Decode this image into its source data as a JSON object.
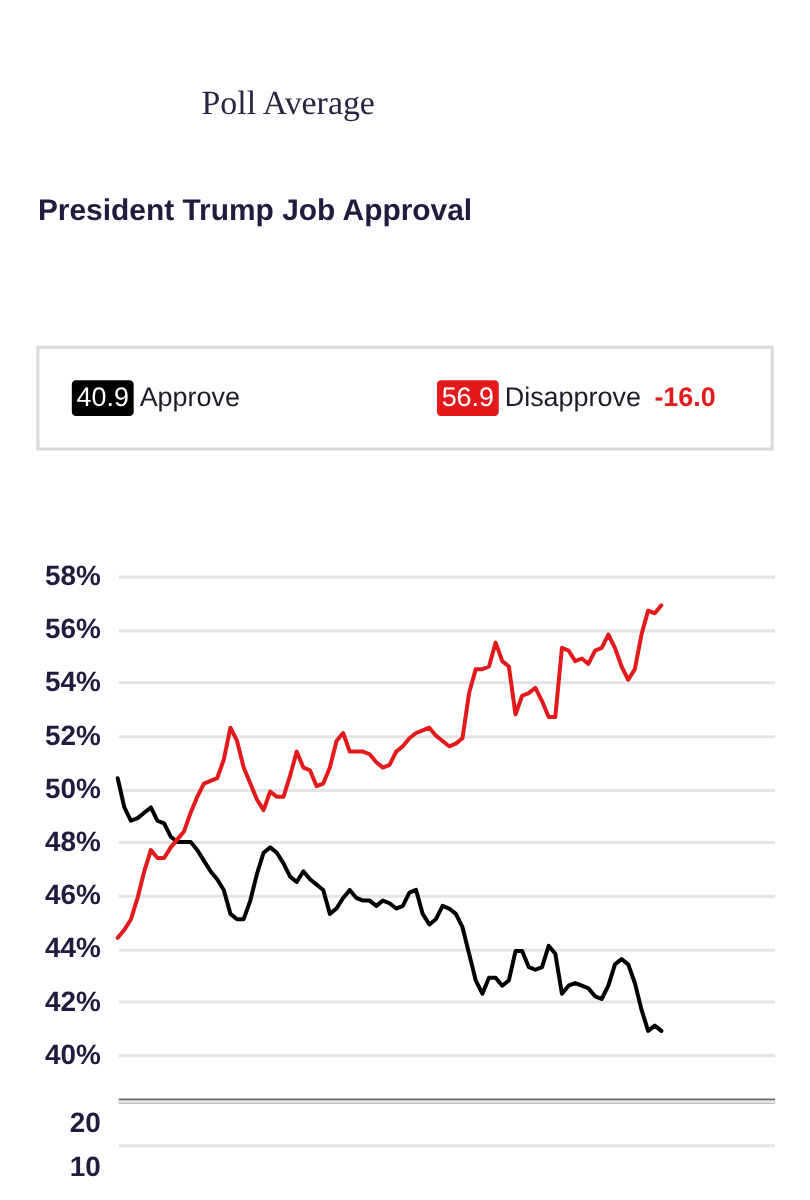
{
  "chart_data": [
    {
      "type": "line",
      "title": "President Trump Job Approval",
      "subtitle": "Poll Average",
      "annotations": [
        "40.9",
        "56.9",
        "-16.0"
      ],
      "categories": [
        null,
        null,
        null,
        null,
        null,
        null,
        null,
        null,
        null,
        null,
        null,
        null,
        null,
        null,
        null,
        null,
        null,
        null,
        null,
        null,
        null,
        null,
        null,
        null,
        null,
        null,
        null,
        null,
        null,
        null,
        null,
        null,
        null,
        null,
        null,
        null,
        null,
        null,
        null,
        null,
        null,
        null,
        null,
        null,
        null,
        null,
        null,
        null,
        null,
        null,
        null,
        null,
        null,
        null,
        null,
        null,
        null,
        null,
        null,
        null,
        null,
        null,
        null,
        null,
        null,
        null,
        null,
        null,
        null,
        null,
        null,
        null,
        null,
        null,
        null,
        null,
        null,
        null,
        null,
        null,
        null,
        null,
        null,
        null,
        null,
        null,
        null,
        null,
        null,
        null,
        null,
        null,
        null,
        null,
        null,
        null,
        null,
        null,
        null,
        null
      ],
      "series": [
        {
          "name": "Approve",
          "color": "#000000",
          "values": [
            50.4,
            49.3,
            48.8,
            48.9,
            49.1,
            49.3,
            48.8,
            48.7,
            48.2,
            48.0,
            48.0,
            48.0,
            47.7,
            47.3,
            46.9,
            46.6,
            46.2,
            45.3,
            45.1,
            45.1,
            45.8,
            46.8,
            47.6,
            47.8,
            47.6,
            47.2,
            46.7,
            46.5,
            46.9,
            46.6,
            46.4,
            46.2,
            45.3,
            45.5,
            45.9,
            46.2,
            45.9,
            45.8,
            45.8,
            45.6,
            45.8,
            45.7,
            45.5,
            45.6,
            46.1,
            46.2,
            45.3,
            44.9,
            45.1,
            45.6,
            45.5,
            45.3,
            44.8,
            43.8,
            42.8,
            42.3,
            42.9,
            42.9,
            42.6,
            42.8,
            43.9,
            43.9,
            43.3,
            43.2,
            43.3,
            44.1,
            43.8,
            42.3,
            42.6,
            42.7,
            42.6,
            42.5,
            42.2,
            42.1,
            42.6,
            43.4,
            43.6,
            43.4,
            42.7,
            41.7,
            40.9,
            41.1,
            40.9,
            null,
            null,
            null,
            null,
            null,
            null,
            null,
            null,
            null,
            null,
            null,
            null,
            null,
            null,
            null,
            null,
            null
          ]
        },
        {
          "name": "Disapprove",
          "color": "#e3191c",
          "values": [
            44.4,
            44.7,
            45.1,
            45.9,
            46.9,
            47.7,
            47.4,
            47.4,
            47.8,
            48.1,
            48.4,
            49.1,
            49.7,
            50.2,
            50.3,
            50.4,
            51.1,
            52.3,
            51.8,
            50.8,
            50.2,
            49.6,
            49.2,
            49.9,
            49.7,
            49.7,
            50.5,
            51.4,
            50.8,
            50.7,
            50.1,
            50.2,
            50.8,
            51.8,
            52.1,
            51.4,
            51.4,
            51.4,
            51.3,
            51.0,
            50.8,
            50.9,
            51.4,
            51.6,
            51.9,
            52.1,
            52.2,
            52.3,
            52.0,
            51.8,
            51.6,
            51.7,
            51.9,
            53.6,
            54.5,
            54.5,
            54.6,
            55.5,
            54.8,
            54.6,
            52.8,
            53.5,
            53.6,
            53.8,
            53.3,
            52.7,
            52.7,
            55.3,
            55.2,
            54.8,
            54.9,
            54.7,
            55.2,
            55.3,
            55.8,
            55.3,
            54.6,
            54.1,
            54.5,
            55.8,
            56.7,
            56.6,
            56.9,
            null,
            null,
            null,
            null,
            null,
            null,
            null,
            null,
            null,
            null,
            null,
            null,
            null,
            null,
            null,
            null,
            null
          ]
        }
      ],
      "ylim": [
        38.3,
        58
      ],
      "yticks": [
        {
          "value": 40,
          "label": "40%"
        },
        {
          "value": 42,
          "label": "42%"
        },
        {
          "value": 44,
          "label": "44%"
        },
        {
          "value": 46,
          "label": "46%"
        },
        {
          "value": 48,
          "label": "48%"
        },
        {
          "value": 50,
          "label": "50%"
        },
        {
          "value": 52,
          "label": "52%"
        },
        {
          "value": 54,
          "label": "54%"
        },
        {
          "value": 56,
          "label": "56%"
        },
        {
          "value": 58,
          "label": "58%"
        }
      ],
      "grid": "y",
      "legend": "top",
      "tick_labels": "y",
      "marker": "none",
      "line_style": "solid"
    },
    {
      "type": "bar",
      "categories": [
        null
      ],
      "values": [
        null
      ],
      "ylim": [
        0,
        20
      ],
      "yticks": [
        10,
        20
      ],
      "grid": "y",
      "tick_labels": "y"
    }
  ]
}
